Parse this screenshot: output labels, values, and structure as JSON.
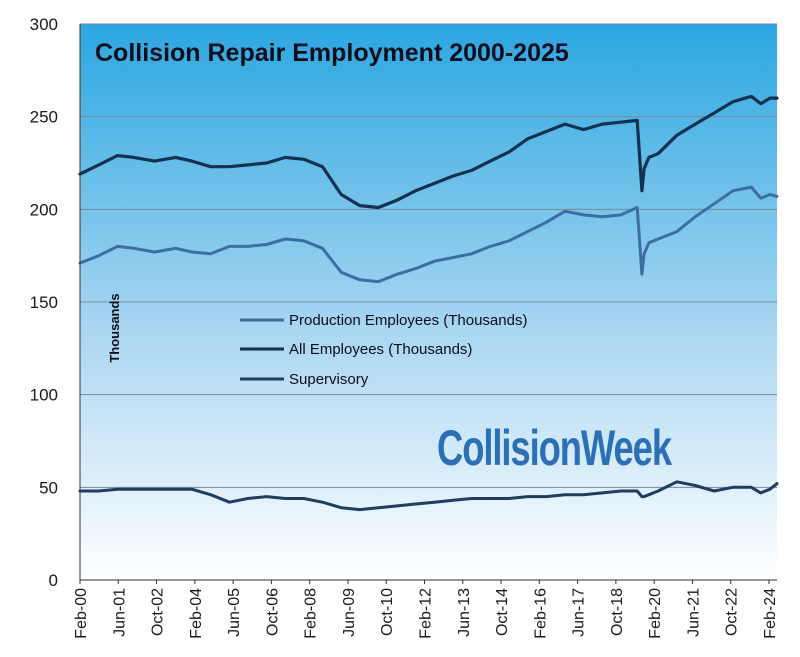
{
  "chart_data": {
    "type": "line",
    "title": "Collision Repair Employment 2000-2025",
    "ylabel": "Thousands",
    "xlabel": "",
    "ylim": [
      0,
      300
    ],
    "yticks": [
      0,
      50,
      100,
      150,
      200,
      250,
      300
    ],
    "x_tick_labels": [
      "Feb-00",
      "Jun-01",
      "Oct-02",
      "Feb-04",
      "Jun-05",
      "Oct-06",
      "Feb-08",
      "Jun-09",
      "Oct-10",
      "Feb-12",
      "Jun-13",
      "Oct-14",
      "Feb-16",
      "Jun-17",
      "Oct-18",
      "Feb-20",
      "Jun-21",
      "Oct-22",
      "Feb-24"
    ],
    "grid": "horizontal",
    "legend_position": "center-left",
    "watermark": "CollisionWeek",
    "colors": {
      "background_top": "#2aa7e0",
      "background_bottom": "#ffffff",
      "production": "#3d6ea3",
      "all": "#16304f",
      "supervisory": "#1f3d5e",
      "watermark": "#2a6fb8"
    },
    "x": [
      2000.08,
      2000.75,
      2001.42,
      2002.0,
      2002.75,
      2003.5,
      2004.08,
      2004.75,
      2005.42,
      2006.08,
      2006.75,
      2007.42,
      2008.08,
      2008.75,
      2009.42,
      2010.08,
      2010.75,
      2011.42,
      2012.08,
      2012.75,
      2013.42,
      2014.08,
      2014.75,
      2015.42,
      2016.08,
      2016.75,
      2017.42,
      2018.08,
      2018.75,
      2019.42,
      2020.0,
      2020.17,
      2020.25,
      2020.42,
      2020.75,
      2021.42,
      2022.08,
      2022.75,
      2023.42,
      2024.08,
      2024.42,
      2024.75,
      2025.0
    ],
    "series": [
      {
        "name": "Production Employees (Thousands)",
        "values": [
          171,
          175,
          180,
          179,
          177,
          179,
          177,
          176,
          180,
          180,
          181,
          184,
          183,
          179,
          166,
          162,
          161,
          165,
          168,
          172,
          174,
          176,
          180,
          183,
          188,
          193,
          199,
          197,
          196,
          197,
          201,
          165,
          176,
          182,
          184,
          188,
          196,
          203,
          210,
          212,
          206,
          208,
          207
        ]
      },
      {
        "name": "All Employees (Thousands)",
        "values": [
          219,
          224,
          229,
          228,
          226,
          228,
          226,
          223,
          223,
          224,
          225,
          228,
          227,
          223,
          208,
          202,
          201,
          205,
          210,
          214,
          218,
          221,
          226,
          231,
          238,
          242,
          246,
          243,
          246,
          247,
          248,
          210,
          222,
          228,
          230,
          240,
          246,
          252,
          258,
          261,
          257,
          260,
          260
        ]
      },
      {
        "name": "Supervisory",
        "values": [
          48,
          48,
          49,
          49,
          49,
          49,
          49,
          46,
          42,
          44,
          45,
          44,
          44,
          42,
          39,
          38,
          39,
          40,
          41,
          42,
          43,
          44,
          44,
          44,
          45,
          45,
          46,
          46,
          47,
          48,
          48,
          45,
          45,
          46,
          48,
          53,
          51,
          48,
          50,
          50,
          47,
          49,
          52
        ]
      }
    ]
  }
}
